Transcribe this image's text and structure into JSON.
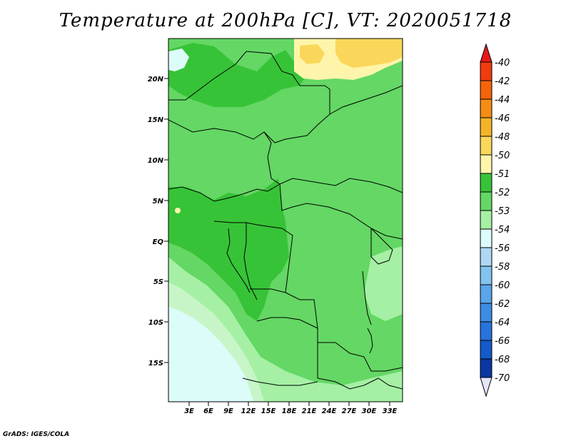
{
  "title": "Temperature at 200hPa [C], VT: 2020051718",
  "footer": "GrADS: IGES/COLA",
  "axes": {
    "lat_labels": [
      "20N",
      "15N",
      "10N",
      "5N",
      "EQ",
      "5S",
      "10S",
      "15S"
    ],
    "lon_labels": [
      "3E",
      "6E",
      "9E",
      "12E",
      "15E",
      "18E",
      "21E",
      "24E",
      "27E",
      "30E",
      "33E"
    ]
  },
  "colorbar": {
    "labels": [
      "-40",
      "-42",
      "-44",
      "-46",
      "-48",
      "-50",
      "-51",
      "-52",
      "-53",
      "-54",
      "-56",
      "-58",
      "-60",
      "-62",
      "-64",
      "-66",
      "-68",
      "-70"
    ],
    "colors": [
      "#e6191a",
      "#f03c0f",
      "#f5640a",
      "#f58c14",
      "#f5b428",
      "#fad75a",
      "#fff5aa",
      "#37c337",
      "#64d764",
      "#a5f0a5",
      "#dcfcfa",
      "#afd7f5",
      "#82c3f0",
      "#5aa5eb",
      "#3c8ce6",
      "#2873dc",
      "#145ac8",
      "#0a37a0",
      "#0a1464",
      "#e6e6fa"
    ]
  },
  "map_colors": {
    "lev_-53": "#64d764",
    "lev_-52": "#37c337",
    "lev_-54": "#a5f0a5",
    "lev_-56": "#dcfcfa",
    "lev_-50": "#fad75a",
    "lev_-51": "#fff5aa",
    "lev_-55": "#c8f5c8",
    "border": "#000000"
  }
}
